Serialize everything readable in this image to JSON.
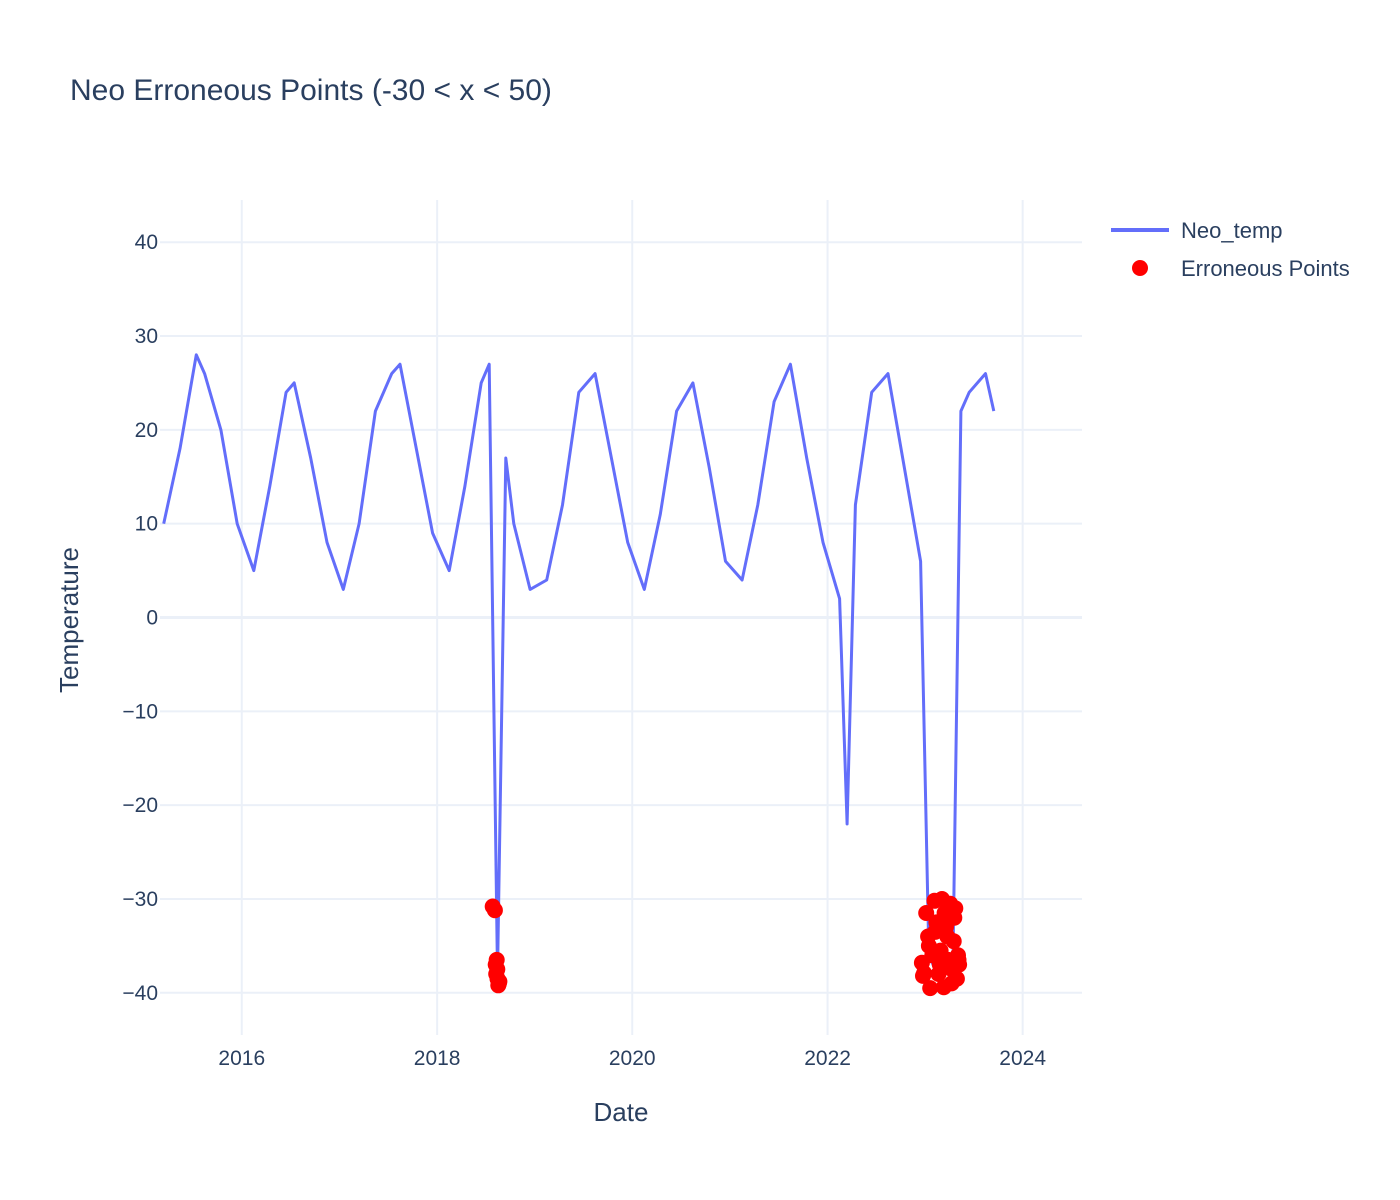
{
  "chart_data": {
    "type": "line",
    "title": "Neo Erroneous Points (-30 < x < 50)",
    "xlabel": "Date",
    "ylabel": "Temperature",
    "xlim": [
      "2015-03-01",
      "2024-08-10"
    ],
    "ylim": [
      -44.5,
      44.5
    ],
    "x_ticks": [
      "2016",
      "2018",
      "2020",
      "2022",
      "2024"
    ],
    "y_ticks": [
      "40",
      "30",
      "20",
      "10",
      "0",
      "−10",
      "−20",
      "−30",
      "−40"
    ],
    "y_tick_values": [
      40,
      30,
      20,
      10,
      0,
      -10,
      -20,
      -30,
      -40
    ],
    "grid": true,
    "legend_position": "top-right",
    "series": [
      {
        "name": "Neo_temp",
        "style": "line",
        "color": "#636efa",
        "x": [
          "2015-03",
          "2015-05",
          "2015-07",
          "2015-08",
          "2015-10",
          "2015-12",
          "2016-02",
          "2016-04",
          "2016-06",
          "2016-07",
          "2016-09",
          "2016-11",
          "2017-01",
          "2017-03",
          "2017-05",
          "2017-07",
          "2017-08",
          "2017-10",
          "2017-12",
          "2018-02",
          "2018-04",
          "2018-06",
          "2018-07",
          "2018-08",
          "2018-09",
          "2018-10",
          "2018-12",
          "2019-02",
          "2019-04",
          "2019-06",
          "2019-08",
          "2019-10",
          "2019-12",
          "2020-02",
          "2020-04",
          "2020-06",
          "2020-08",
          "2020-10",
          "2020-12",
          "2021-02",
          "2021-04",
          "2021-06",
          "2021-08",
          "2021-10",
          "2021-12",
          "2022-02",
          "2022-03",
          "2022-04",
          "2022-06",
          "2022-08",
          "2022-10",
          "2022-12",
          "2023-01",
          "2023-02",
          "2023-03",
          "2023-04",
          "2023-05",
          "2023-06",
          "2023-08",
          "2023-09"
        ],
        "y": [
          10,
          18,
          28,
          26,
          20,
          10,
          5,
          14,
          24,
          25,
          17,
          8,
          3,
          10,
          22,
          26,
          27,
          18,
          9,
          5,
          14,
          25,
          27,
          -38,
          17,
          10,
          3,
          4,
          12,
          24,
          26,
          17,
          8,
          3,
          11,
          22,
          25,
          16,
          6,
          4,
          12,
          23,
          27,
          17,
          8,
          2,
          -22,
          12,
          24,
          26,
          16,
          6,
          -36,
          -38,
          -36,
          -37,
          22,
          24,
          26,
          22
        ]
      },
      {
        "name": "Erroneous Points",
        "style": "markers",
        "color": "#ff0000",
        "x": [
          "2018-07-28",
          "2018-08-05",
          "2018-08-08",
          "2018-08-12",
          "2018-08-15",
          "2018-08-18",
          "2018-08-20",
          "2018-08-10",
          "2018-08-14",
          "2018-08-22",
          "2022-12-20",
          "2022-12-24",
          "2022-12-28",
          "2023-01-05",
          "2023-01-12",
          "2023-01-20",
          "2023-01-28",
          "2023-02-05",
          "2023-02-12",
          "2023-02-20",
          "2023-02-28",
          "2023-03-05",
          "2023-03-12",
          "2023-03-20",
          "2023-03-28",
          "2023-04-05",
          "2023-04-12",
          "2023-04-18",
          "2023-04-24",
          "2023-04-30",
          "2023-05-04",
          "2023-05-08",
          "2023-01-15",
          "2023-02-08",
          "2023-03-15",
          "2023-04-10",
          "2023-02-25",
          "2023-03-25",
          "2023-04-20",
          "2023-05-06"
        ],
        "y": [
          -30.8,
          -31.2,
          -37.0,
          -36.5,
          -38.5,
          -39.2,
          -39.0,
          -38.0,
          -37.5,
          -38.8,
          -36.8,
          -38.2,
          -37.9,
          -31.5,
          -34.0,
          -39.5,
          -36.0,
          -30.2,
          -32.5,
          -38.0,
          -35.5,
          -30.0,
          -39.4,
          -33.0,
          -36.5,
          -30.5,
          -37.5,
          -34.5,
          -31.0,
          -38.5,
          -36.0,
          -37.0,
          -35.0,
          -33.5,
          -31.5,
          -39.0,
          -37.0,
          -34.0,
          -32.0,
          -36.5
        ]
      }
    ]
  }
}
